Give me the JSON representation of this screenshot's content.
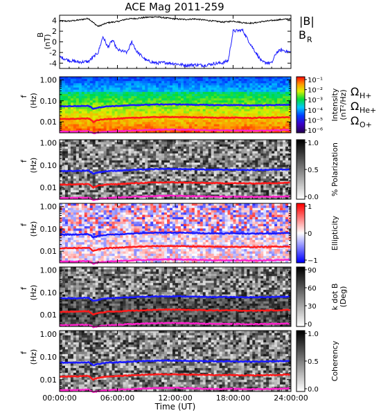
{
  "title": "ACE Mag 2011-259",
  "colors": {
    "B_total": "#000000",
    "B_R": "#1a1aff",
    "H_plus": "#1a1aff",
    "He_plus": "#ff1a1a",
    "O_plus": "#ff22cc"
  },
  "legend": {
    "b_total": "|B|",
    "b_r_main": "B",
    "b_r_sub": "R",
    "omega": "Ω",
    "h_sub": "H+",
    "he_sub": "He+",
    "o_sub": "O+"
  },
  "chart_data": {
    "type": "line",
    "xlabel": "Time (UT)",
    "x_ticks": [
      "00:00:00",
      "06:00:00",
      "12:00:00",
      "18:00:00",
      "24:00:00"
    ],
    "x_range_hours": [
      0,
      24
    ],
    "panels": [
      {
        "kind": "line",
        "ylabel_main": "B",
        "ylabel_unit": "(nT)",
        "ylim": [
          -5,
          5
        ],
        "y_ticks": [
          "4",
          "2",
          "0",
          "-2",
          "-4"
        ],
        "series": [
          {
            "name": "|B|",
            "x": [
              0,
              1,
              2,
              3,
              3.5,
              4,
              5,
              6,
              7,
              8,
              9,
              10,
              11,
              12,
              13,
              14,
              15,
              16,
              17,
              18,
              19,
              20,
              21,
              22,
              23,
              24
            ],
            "values": [
              3.9,
              3.9,
              4.1,
              4.4,
              3.6,
              2.9,
              3.6,
              3.8,
              4.3,
              4.4,
              4.6,
              4.7,
              4.5,
              4.3,
              4.2,
              4.3,
              4.1,
              3.9,
              3.7,
              3.9,
              3.6,
              3.5,
              3.8,
              4.0,
              4.2,
              4.3
            ]
          },
          {
            "name": "B_R",
            "x": [
              0,
              1,
              2,
              3,
              4,
              4.5,
              5,
              5.5,
              6,
              7,
              7.5,
              8,
              9,
              10,
              11,
              12,
              13,
              14,
              15,
              16,
              17,
              17.5,
              18,
              19,
              19.5,
              20,
              21,
              22,
              22.5,
              23,
              24
            ],
            "values": [
              -2.8,
              -3.5,
              -3.8,
              -3.7,
              -2.0,
              1.0,
              -1.0,
              0.3,
              -1.5,
              -2.0,
              0.0,
              -1.8,
              -3.5,
              -4.0,
              -3.9,
              -4.1,
              -4.4,
              -4.3,
              -4.4,
              -4.1,
              -3.9,
              -3.5,
              2.0,
              2.2,
              0.5,
              -1.0,
              -3.8,
              -4.0,
              -2.0,
              -1.5,
              -2.0
            ]
          }
        ]
      },
      {
        "kind": "spectrogram",
        "palette": "rainbow",
        "ylabel_main": "f",
        "ylabel_unit": "(Hz)",
        "y_ticks": [
          "1.00",
          "0.10",
          "0.01"
        ],
        "colorbar_label": "Intensity",
        "colorbar_label_unit": "(nT²/Hz)",
        "colorbar_ticks": [
          "10⁻¹",
          "10⁻²",
          "10⁻³",
          "10⁻⁴",
          "10⁻⁵",
          "10⁻⁶"
        ]
      },
      {
        "kind": "spectrogram",
        "palette": "gray",
        "ylabel_main": "f",
        "ylabel_unit": "(Hz)",
        "y_ticks": [
          "1.00",
          "0.10",
          "0.01"
        ],
        "colorbar_label": "% Polarization",
        "colorbar_label_unit": "",
        "colorbar_ticks": [
          "1.0",
          "0.5",
          "0.0"
        ]
      },
      {
        "kind": "spectrogram",
        "palette": "bwr",
        "ylabel_main": "f",
        "ylabel_unit": "(Hz)",
        "y_ticks": [
          "1.00",
          "0.10",
          "0.01"
        ],
        "colorbar_label": "Ellipticity",
        "colorbar_label_unit": "",
        "colorbar_ticks": [
          "1",
          "0",
          "−1"
        ]
      },
      {
        "kind": "spectrogram",
        "palette": "gray",
        "ylabel_main": "f",
        "ylabel_unit": "(Hz)",
        "y_ticks": [
          "1.00",
          "0.10",
          "0.01"
        ],
        "colorbar_label": "k dot B",
        "colorbar_label_unit": "(Deg)",
        "colorbar_ticks": [
          "90",
          "60",
          "30",
          "0"
        ]
      },
      {
        "kind": "spectrogram",
        "palette": "gray",
        "ylabel_main": "f",
        "ylabel_unit": "(Hz)",
        "y_ticks": [
          "1.00",
          "0.10",
          "0.01"
        ],
        "colorbar_label": "Coherency",
        "colorbar_label_unit": "",
        "colorbar_ticks": [
          "1.0",
          "0.5",
          "0.0"
        ]
      }
    ],
    "gyrofrequency_series": [
      {
        "name": "Ω H+",
        "x": [
          0,
          2,
          3,
          3.5,
          4,
          5,
          6,
          8,
          10,
          12,
          14,
          16,
          18,
          20,
          22,
          24
        ],
        "values_hz": [
          0.055,
          0.056,
          0.058,
          0.042,
          0.048,
          0.055,
          0.057,
          0.063,
          0.067,
          0.068,
          0.065,
          0.063,
          0.063,
          0.061,
          0.063,
          0.066
        ]
      },
      {
        "name": "Ω He+",
        "x": [
          0,
          2,
          3,
          3.5,
          4,
          5,
          6,
          8,
          10,
          12,
          14,
          16,
          18,
          20,
          22,
          24
        ],
        "values_hz": [
          0.0135,
          0.014,
          0.0145,
          0.01,
          0.012,
          0.0138,
          0.0142,
          0.0158,
          0.0168,
          0.017,
          0.0163,
          0.0158,
          0.0157,
          0.0153,
          0.0158,
          0.0165
        ]
      },
      {
        "name": "Ω O+",
        "x": [
          0,
          2,
          3,
          3.5,
          4,
          5,
          6,
          8,
          10,
          12,
          14,
          16,
          18,
          20,
          22,
          24
        ],
        "values_hz": [
          0.0034,
          0.0035,
          0.0036,
          0.0028,
          0.0031,
          0.0034,
          0.0036,
          0.0039,
          0.0042,
          0.0043,
          0.0041,
          0.0039,
          0.0039,
          0.0038,
          0.0039,
          0.0041
        ]
      }
    ]
  }
}
